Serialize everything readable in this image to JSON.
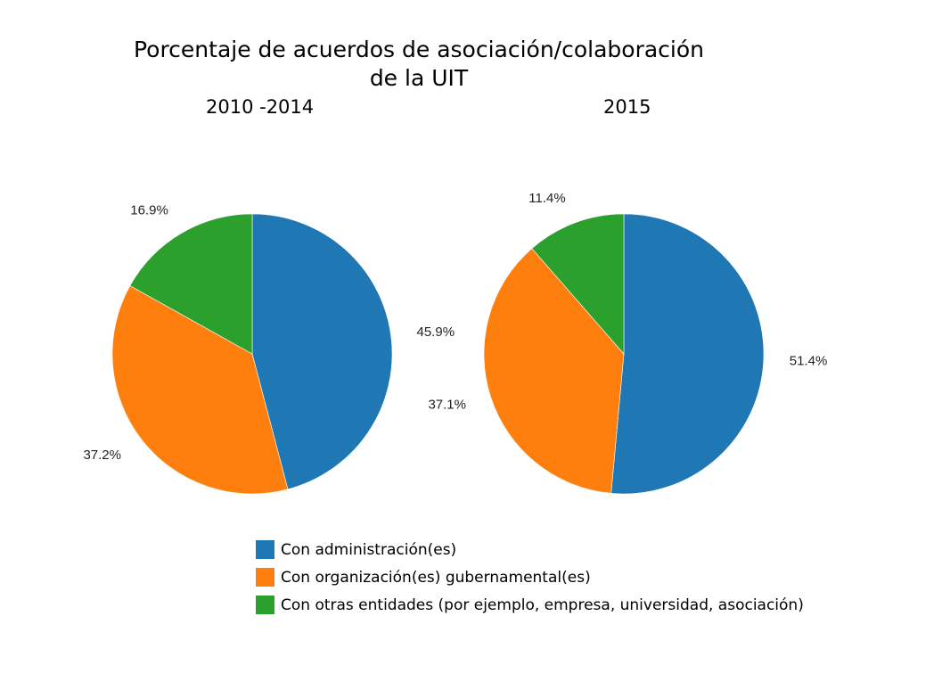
{
  "chart_data": {
    "type": "pie",
    "title": "Porcentaje de acuerdos de asociación/colaboración de la UIT",
    "title_lines": [
      "Porcentaje de acuerdos de asociación/colaboración",
      "de la UIT"
    ],
    "categories": [
      "Con administración(es)",
      "Con organización(es) gubernamental(es)",
      "Con otras entidades (por ejemplo, empresa, universidad, asociación)"
    ],
    "colors": [
      "#1f77b4",
      "#ff7f0e",
      "#2ca02c"
    ],
    "legend_position": "bottom",
    "pies": [
      {
        "label": "2010 -2014",
        "values": [
          45.9,
          37.2,
          16.9
        ],
        "value_labels": [
          "45.9%",
          "37.2%",
          "16.9%"
        ]
      },
      {
        "label": "2015",
        "values": [
          51.4,
          37.1,
          11.4
        ],
        "value_labels": [
          "51.4%",
          "37.1%",
          "11.4%"
        ]
      }
    ]
  }
}
